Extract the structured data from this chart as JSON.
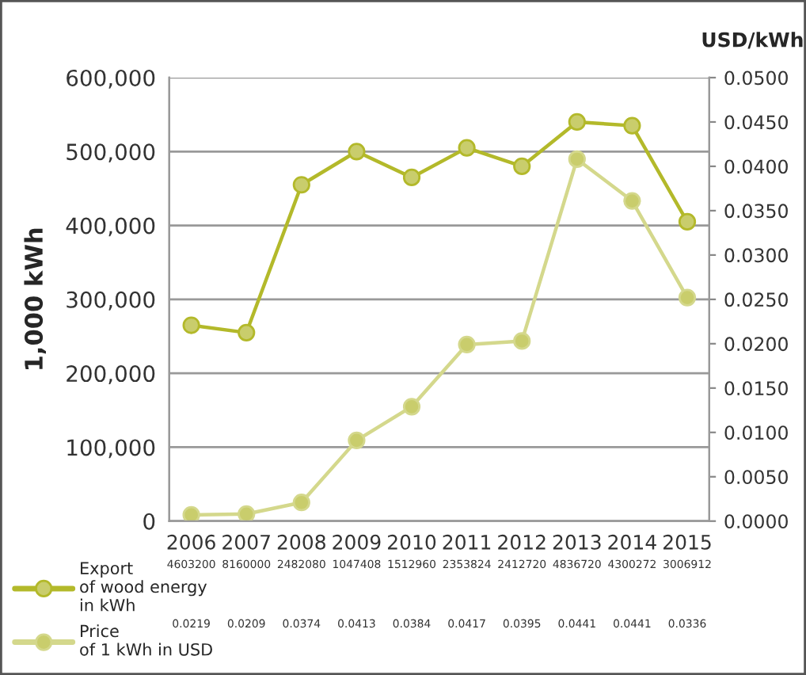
{
  "chart_data": {
    "type": "line",
    "ylabel": "1,000 kWh",
    "y2label": "USD/kWh",
    "categories": [
      "2006",
      "2007",
      "2008",
      "2009",
      "2010",
      "2011",
      "2012",
      "2013",
      "2014",
      "2015"
    ],
    "series": [
      {
        "name": "Export\nof wood energy\nin kWh",
        "color": "#b3b92a",
        "values": [
          265000,
          255000,
          455000,
          500000,
          465000,
          505000,
          480000,
          540000,
          535000,
          405000
        ]
      },
      {
        "name": "Price\nof 1 kWh in USD",
        "color": "#d4d88c",
        "axis": "y2",
        "values": [
          0.0007,
          0.0008,
          0.0021,
          0.0091,
          0.0129,
          0.0199,
          0.0203,
          0.0408,
          0.0361,
          0.0252
        ]
      }
    ],
    "ylim": [
      0,
      600000
    ],
    "yticks": [
      {
        "value": 0,
        "label": "0"
      },
      {
        "value": 100000,
        "label": "100,000"
      },
      {
        "value": 200000,
        "label": "200,000"
      },
      {
        "value": 300000,
        "label": "300,000"
      },
      {
        "value": 400000,
        "label": "400,000"
      },
      {
        "value": 500000,
        "label": "500,000"
      },
      {
        "value": 600000,
        "label": "600,000"
      }
    ],
    "y2lim": [
      0,
      0.05
    ],
    "y2ticks": [
      {
        "value": 0,
        "label": "0.0000"
      },
      {
        "value": 0.005,
        "label": "0.0050"
      },
      {
        "value": 0.01,
        "label": "0.0100"
      },
      {
        "value": 0.015,
        "label": "0.0150"
      },
      {
        "value": 0.02,
        "label": "0.0200"
      },
      {
        "value": 0.025,
        "label": "0.0250"
      },
      {
        "value": 0.03,
        "label": "0.0300"
      },
      {
        "value": 0.035,
        "label": "0.0350"
      },
      {
        "value": 0.04,
        "label": "0.0400"
      },
      {
        "value": 0.045,
        "label": "0.0450"
      },
      {
        "value": 0.05,
        "label": "0.0500"
      }
    ],
    "grid": "y",
    "legend": "bottom left",
    "marker": "circle",
    "line_style": "solid",
    "annotations": [
      "4603200",
      "8160000",
      "2482080",
      "1047408",
      "1512960",
      "2353824",
      "2412720",
      "4836720",
      "4300272",
      "3006912",
      "0.0219",
      "0.0209",
      "0.0374",
      "0.0413",
      "0.0384",
      "0.0417",
      "0.0395",
      "0.0441",
      "0.0441",
      "0.0336"
    ]
  }
}
